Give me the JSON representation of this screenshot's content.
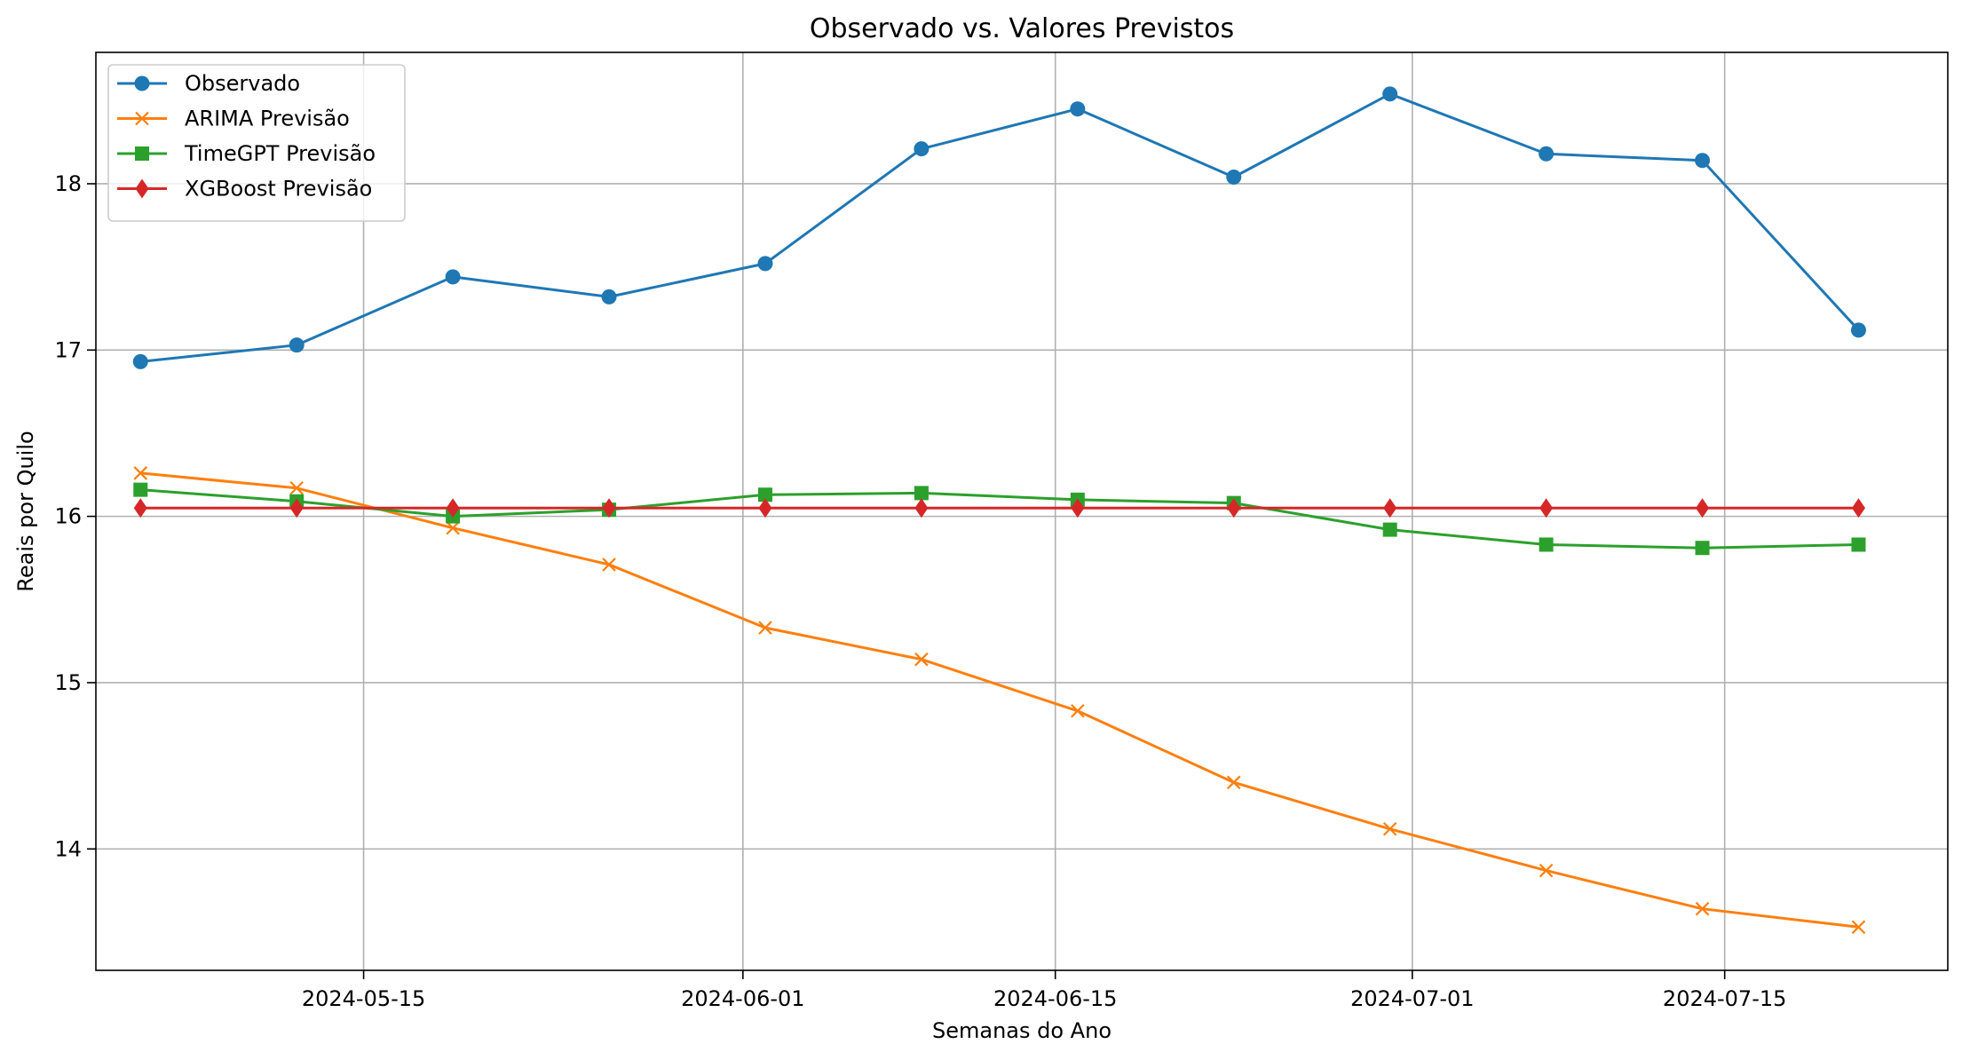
{
  "chart_data": {
    "type": "line",
    "title": "Observado vs. Valores Previstos",
    "xlabel": "Semanas do Ano",
    "ylabel": "Reais por Quilo",
    "x": [
      "2024-05-05",
      "2024-05-12",
      "2024-05-19",
      "2024-05-26",
      "2024-06-02",
      "2024-06-09",
      "2024-06-16",
      "2024-06-23",
      "2024-06-30",
      "2024-07-07",
      "2024-07-14",
      "2024-07-21"
    ],
    "x_ticks": [
      "2024-05-15",
      "2024-06-01",
      "2024-06-15",
      "2024-07-01",
      "2024-07-15"
    ],
    "xlim": [
      "2024-05-03",
      "2024-07-25"
    ],
    "y_ticks": [
      14,
      15,
      16,
      17,
      18
    ],
    "ylim": [
      13.27,
      18.79
    ],
    "grid": true,
    "legend_position": "upper-left",
    "series": [
      {
        "name": "Observado",
        "color": "#1f77b4",
        "marker": "circle",
        "values": [
          16.93,
          17.03,
          17.44,
          17.32,
          17.52,
          18.21,
          18.45,
          18.04,
          18.54,
          18.18,
          18.14,
          17.12
        ]
      },
      {
        "name": "ARIMA Previsão",
        "color": "#ff7f0e",
        "marker": "x",
        "values": [
          16.26,
          16.17,
          15.93,
          15.71,
          15.33,
          15.14,
          14.83,
          14.4,
          14.12,
          13.87,
          13.64,
          13.53
        ]
      },
      {
        "name": "TimeGPT Previsão",
        "color": "#2ca02c",
        "marker": "square",
        "values": [
          16.16,
          16.09,
          16.0,
          16.04,
          16.13,
          16.14,
          16.1,
          16.08,
          15.92,
          15.83,
          15.81,
          15.83
        ]
      },
      {
        "name": "XGBoost Previsão",
        "color": "#d62728",
        "marker": "diamond",
        "values": [
          16.05,
          16.05,
          16.05,
          16.05,
          16.05,
          16.05,
          16.05,
          16.05,
          16.05,
          16.05,
          16.05,
          16.05
        ]
      }
    ]
  }
}
